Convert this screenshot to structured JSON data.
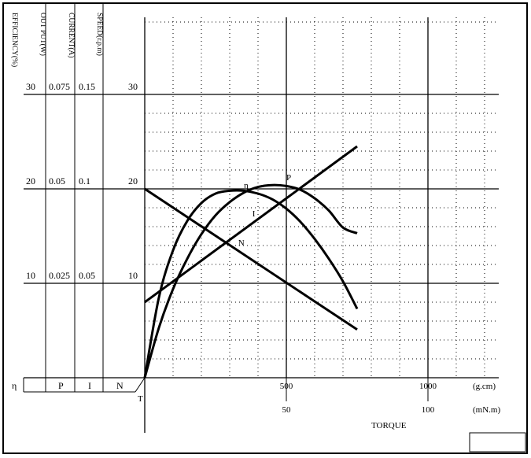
{
  "chart_data": {
    "type": "line",
    "title": "",
    "xlabel": "TORQUE",
    "x_units_primary": "(g.cm)",
    "x_units_secondary": "(mN.m)",
    "x_ticks_primary": [
      {
        "value": 500,
        "label": "500"
      },
      {
        "value": 1000,
        "label": "1000"
      }
    ],
    "x_ticks_secondary": [
      {
        "value": 50,
        "label": "50"
      },
      {
        "value": 100,
        "label": "100"
      }
    ],
    "xlim": [
      0,
      1200
    ],
    "axes": [
      {
        "key": "efficiency",
        "header": "EFFICIENCY(%)",
        "symbol": "η",
        "ticks": [
          "30",
          "20",
          "10"
        ]
      },
      {
        "key": "output",
        "header": "OUT PUT(W)",
        "symbol": "P",
        "ticks": [
          "0.075",
          "0.05",
          "0.025"
        ]
      },
      {
        "key": "current",
        "header": "CURRENT(A)",
        "symbol": "I",
        "ticks": [
          "0.15",
          "0.1",
          "0.05"
        ]
      },
      {
        "key": "speed",
        "header": "SPEED(r.p.m)",
        "symbol": "N",
        "ticks": [
          "30",
          "20",
          "10"
        ]
      }
    ],
    "tick_levels": [
      30,
      20,
      10
    ],
    "ylim": [
      0,
      30
    ],
    "origin_label": "T",
    "series": [
      {
        "key": "efficiency",
        "label": "η",
        "label_at": [
          350,
          20.1
        ],
        "x": [
          0,
          50,
          100,
          150,
          200,
          250,
          300,
          350,
          400,
          450,
          500,
          550,
          600,
          650,
          700,
          750
        ],
        "y": [
          0,
          8.5,
          13.5,
          16.6,
          18.5,
          19.5,
          19.8,
          19.8,
          19.5,
          18.9,
          17.9,
          16.5,
          14.7,
          12.6,
          10.2,
          7.3
        ]
      },
      {
        "key": "output",
        "label": "P",
        "label_at": [
          500,
          20.9
        ],
        "x": [
          0,
          50,
          100,
          150,
          200,
          250,
          300,
          350,
          400,
          450,
          500,
          550,
          600,
          650,
          700,
          750
        ],
        "y": [
          0,
          5.3,
          9.4,
          12.6,
          15.2,
          17.2,
          18.6,
          19.6,
          20.2,
          20.4,
          20.3,
          19.9,
          19.0,
          17.7,
          15.9,
          15.3
        ]
      },
      {
        "key": "current",
        "label": "I",
        "label_at": [
          380,
          17.1
        ],
        "x": [
          0,
          750
        ],
        "y": [
          8,
          24.5
        ]
      },
      {
        "key": "speed",
        "label": "N",
        "label_at": [
          330,
          14.0
        ],
        "x": [
          0,
          750
        ],
        "y": [
          20,
          5.1
        ]
      }
    ],
    "grid": true
  }
}
